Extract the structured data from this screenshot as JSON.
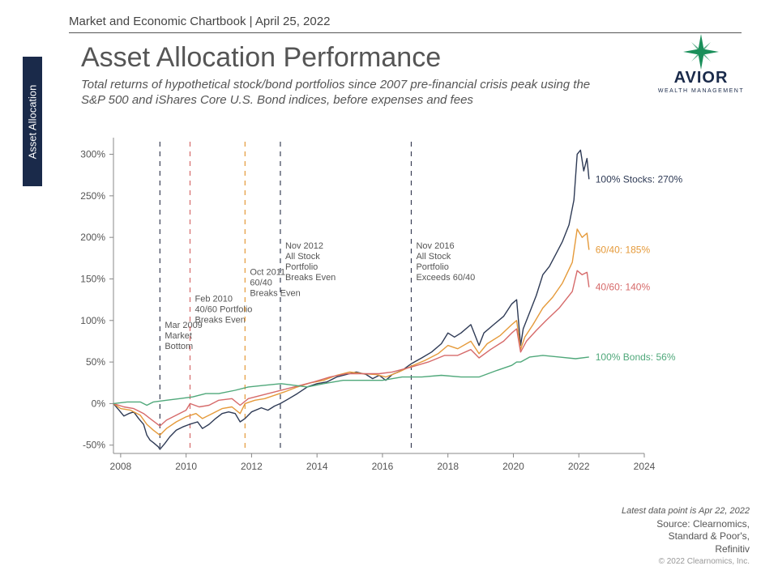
{
  "header": {
    "subheader": "Market and Economic Chartbook | April 25, 2022",
    "title": "Asset Allocation Performance",
    "subtitle": "Total returns of hypothetical stock/bond portfolios since 2007 pre-financial crisis peak using the S&P 500 and iShares Core U.S. Bond indices, before expenses and fees"
  },
  "sidebar_tab": "Asset Allocation",
  "logo": {
    "brand": "AVIOR",
    "tagline": "WEALTH MANAGEMENT",
    "star_color": "#1a8f5a",
    "text_color": "#1a2a4a"
  },
  "chart": {
    "type": "line",
    "background_color": "#ffffff",
    "axis_color": "#888888",
    "tick_fontsize": 12,
    "x": {
      "domain_years": [
        2007.78,
        2024
      ],
      "ticks": [
        2008,
        2010,
        2012,
        2014,
        2016,
        2018,
        2020,
        2022,
        2024
      ]
    },
    "y": {
      "domain_pct": [
        -60,
        320
      ],
      "ticks": [
        -50,
        0,
        50,
        100,
        150,
        200,
        250,
        300
      ],
      "tick_suffix": "%"
    },
    "events": [
      {
        "year": 2009.2,
        "color": "#3a3f55",
        "label": "Mar 2009\nMarket\nBottom"
      },
      {
        "year": 2010.12,
        "color": "#d66a6a",
        "label": "Feb 2010\n40/60 Portfolio\nBreaks Even"
      },
      {
        "year": 2011.8,
        "color": "#e59a3a",
        "label": "Oct 2011\n60/40\nBreaks Even"
      },
      {
        "year": 2012.88,
        "color": "#3a3f55",
        "label": "Nov 2012\nAll Stock\nPortfolio\nBreaks Even"
      },
      {
        "year": 2016.88,
        "color": "#3a3f55",
        "label": "Nov 2016\nAll Stock\nPortfolio\nExceeds 60/40"
      }
    ],
    "series": [
      {
        "id": "stocks100",
        "label": "100% Stocks: 270%",
        "color": "#2e3a55",
        "line_width": 1.4,
        "end_value": 270,
        "points": [
          [
            2007.78,
            0
          ],
          [
            2007.95,
            -8
          ],
          [
            2008.1,
            -15
          ],
          [
            2008.25,
            -12
          ],
          [
            2008.4,
            -10
          ],
          [
            2008.55,
            -18
          ],
          [
            2008.7,
            -25
          ],
          [
            2008.8,
            -38
          ],
          [
            2008.9,
            -44
          ],
          [
            2009.0,
            -47
          ],
          [
            2009.15,
            -52
          ],
          [
            2009.2,
            -55
          ],
          [
            2009.35,
            -48
          ],
          [
            2009.5,
            -40
          ],
          [
            2009.7,
            -32
          ],
          [
            2009.9,
            -28
          ],
          [
            2010.1,
            -25
          ],
          [
            2010.35,
            -22
          ],
          [
            2010.5,
            -30
          ],
          [
            2010.7,
            -25
          ],
          [
            2010.9,
            -18
          ],
          [
            2011.1,
            -12
          ],
          [
            2011.3,
            -10
          ],
          [
            2011.5,
            -12
          ],
          [
            2011.65,
            -22
          ],
          [
            2011.8,
            -18
          ],
          [
            2012.0,
            -10
          ],
          [
            2012.3,
            -5
          ],
          [
            2012.5,
            -8
          ],
          [
            2012.7,
            -3
          ],
          [
            2012.88,
            0
          ],
          [
            2013.1,
            5
          ],
          [
            2013.4,
            12
          ],
          [
            2013.7,
            20
          ],
          [
            2014.0,
            24
          ],
          [
            2014.3,
            26
          ],
          [
            2014.6,
            32
          ],
          [
            2014.9,
            35
          ],
          [
            2015.2,
            38
          ],
          [
            2015.5,
            35
          ],
          [
            2015.7,
            30
          ],
          [
            2015.9,
            34
          ],
          [
            2016.1,
            28
          ],
          [
            2016.3,
            35
          ],
          [
            2016.6,
            40
          ],
          [
            2016.88,
            48
          ],
          [
            2017.2,
            55
          ],
          [
            2017.5,
            62
          ],
          [
            2017.8,
            72
          ],
          [
            2018.0,
            85
          ],
          [
            2018.2,
            80
          ],
          [
            2018.4,
            85
          ],
          [
            2018.7,
            95
          ],
          [
            2018.95,
            70
          ],
          [
            2019.1,
            85
          ],
          [
            2019.4,
            95
          ],
          [
            2019.7,
            105
          ],
          [
            2019.95,
            120
          ],
          [
            2020.1,
            125
          ],
          [
            2020.22,
            70
          ],
          [
            2020.3,
            90
          ],
          [
            2020.5,
            110
          ],
          [
            2020.7,
            130
          ],
          [
            2020.9,
            155
          ],
          [
            2021.1,
            165
          ],
          [
            2021.3,
            180
          ],
          [
            2021.5,
            195
          ],
          [
            2021.7,
            215
          ],
          [
            2021.85,
            245
          ],
          [
            2021.95,
            300
          ],
          [
            2022.05,
            305
          ],
          [
            2022.15,
            280
          ],
          [
            2022.25,
            295
          ],
          [
            2022.31,
            270
          ]
        ]
      },
      {
        "id": "sixty40",
        "label": "60/40: 185%",
        "color": "#e59a3a",
        "line_width": 1.4,
        "end_value": 185,
        "points": [
          [
            2007.78,
            0
          ],
          [
            2008.0,
            -6
          ],
          [
            2008.3,
            -8
          ],
          [
            2008.6,
            -14
          ],
          [
            2008.8,
            -25
          ],
          [
            2009.0,
            -32
          ],
          [
            2009.2,
            -38
          ],
          [
            2009.4,
            -30
          ],
          [
            2009.7,
            -22
          ],
          [
            2010.0,
            -16
          ],
          [
            2010.3,
            -12
          ],
          [
            2010.5,
            -18
          ],
          [
            2010.8,
            -12
          ],
          [
            2011.1,
            -6
          ],
          [
            2011.4,
            -4
          ],
          [
            2011.65,
            -12
          ],
          [
            2011.8,
            0
          ],
          [
            2012.1,
            4
          ],
          [
            2012.4,
            6
          ],
          [
            2012.7,
            10
          ],
          [
            2013.0,
            14
          ],
          [
            2013.4,
            20
          ],
          [
            2013.8,
            25
          ],
          [
            2014.2,
            28
          ],
          [
            2014.6,
            34
          ],
          [
            2015.0,
            38
          ],
          [
            2015.4,
            36
          ],
          [
            2015.8,
            35
          ],
          [
            2016.1,
            32
          ],
          [
            2016.5,
            38
          ],
          [
            2016.88,
            45
          ],
          [
            2017.3,
            52
          ],
          [
            2017.7,
            60
          ],
          [
            2018.0,
            70
          ],
          [
            2018.3,
            66
          ],
          [
            2018.7,
            75
          ],
          [
            2018.95,
            60
          ],
          [
            2019.2,
            72
          ],
          [
            2019.6,
            82
          ],
          [
            2019.95,
            95
          ],
          [
            2020.1,
            100
          ],
          [
            2020.22,
            65
          ],
          [
            2020.35,
            80
          ],
          [
            2020.6,
            95
          ],
          [
            2020.9,
            115
          ],
          [
            2021.2,
            128
          ],
          [
            2021.5,
            145
          ],
          [
            2021.8,
            170
          ],
          [
            2021.95,
            210
          ],
          [
            2022.1,
            200
          ],
          [
            2022.25,
            205
          ],
          [
            2022.31,
            185
          ]
        ]
      },
      {
        "id": "forty60",
        "label": "40/60: 140%",
        "color": "#d66a6a",
        "line_width": 1.4,
        "end_value": 140,
        "points": [
          [
            2007.78,
            0
          ],
          [
            2008.1,
            -4
          ],
          [
            2008.4,
            -6
          ],
          [
            2008.7,
            -12
          ],
          [
            2008.9,
            -18
          ],
          [
            2009.1,
            -24
          ],
          [
            2009.2,
            -27
          ],
          [
            2009.4,
            -20
          ],
          [
            2009.7,
            -14
          ],
          [
            2010.0,
            -8
          ],
          [
            2010.12,
            0
          ],
          [
            2010.4,
            -4
          ],
          [
            2010.7,
            -2
          ],
          [
            2011.0,
            4
          ],
          [
            2011.4,
            6
          ],
          [
            2011.65,
            -2
          ],
          [
            2011.9,
            6
          ],
          [
            2012.3,
            10
          ],
          [
            2012.7,
            14
          ],
          [
            2013.1,
            18
          ],
          [
            2013.5,
            22
          ],
          [
            2013.9,
            26
          ],
          [
            2014.4,
            32
          ],
          [
            2014.9,
            36
          ],
          [
            2015.4,
            36
          ],
          [
            2015.9,
            36
          ],
          [
            2016.3,
            38
          ],
          [
            2016.88,
            44
          ],
          [
            2017.4,
            50
          ],
          [
            2017.9,
            58
          ],
          [
            2018.3,
            58
          ],
          [
            2018.7,
            65
          ],
          [
            2018.95,
            55
          ],
          [
            2019.3,
            65
          ],
          [
            2019.7,
            75
          ],
          [
            2019.95,
            85
          ],
          [
            2020.1,
            90
          ],
          [
            2020.22,
            62
          ],
          [
            2020.4,
            75
          ],
          [
            2020.7,
            88
          ],
          [
            2021.0,
            100
          ],
          [
            2021.4,
            115
          ],
          [
            2021.8,
            135
          ],
          [
            2021.95,
            160
          ],
          [
            2022.1,
            155
          ],
          [
            2022.25,
            158
          ],
          [
            2022.31,
            140
          ]
        ]
      },
      {
        "id": "bonds100",
        "label": "100% Bonds: 56%",
        "color": "#4fa87a",
        "line_width": 1.4,
        "end_value": 56,
        "points": [
          [
            2007.78,
            0
          ],
          [
            2008.2,
            2
          ],
          [
            2008.6,
            2
          ],
          [
            2008.8,
            -2
          ],
          [
            2009.0,
            2
          ],
          [
            2009.4,
            4
          ],
          [
            2009.8,
            6
          ],
          [
            2010.2,
            8
          ],
          [
            2010.6,
            12
          ],
          [
            2011.0,
            12
          ],
          [
            2011.5,
            16
          ],
          [
            2011.9,
            20
          ],
          [
            2012.4,
            22
          ],
          [
            2012.9,
            24
          ],
          [
            2013.3,
            22
          ],
          [
            2013.7,
            20
          ],
          [
            2014.2,
            24
          ],
          [
            2014.8,
            28
          ],
          [
            2015.4,
            28
          ],
          [
            2016.0,
            28
          ],
          [
            2016.6,
            32
          ],
          [
            2017.2,
            32
          ],
          [
            2017.8,
            34
          ],
          [
            2018.4,
            32
          ],
          [
            2018.95,
            32
          ],
          [
            2019.5,
            40
          ],
          [
            2019.95,
            46
          ],
          [
            2020.1,
            50
          ],
          [
            2020.22,
            50
          ],
          [
            2020.5,
            56
          ],
          [
            2020.9,
            58
          ],
          [
            2021.4,
            56
          ],
          [
            2021.9,
            54
          ],
          [
            2022.31,
            56
          ]
        ]
      }
    ]
  },
  "footer": {
    "datapoint_note": "Latest data point is Apr 22, 2022",
    "source_lead": "Source: Clearnomics,",
    "source_2": "Standard & Poor's,",
    "source_3": "Refinitiv",
    "copyright": "© 2022 Clearnomics, Inc."
  }
}
